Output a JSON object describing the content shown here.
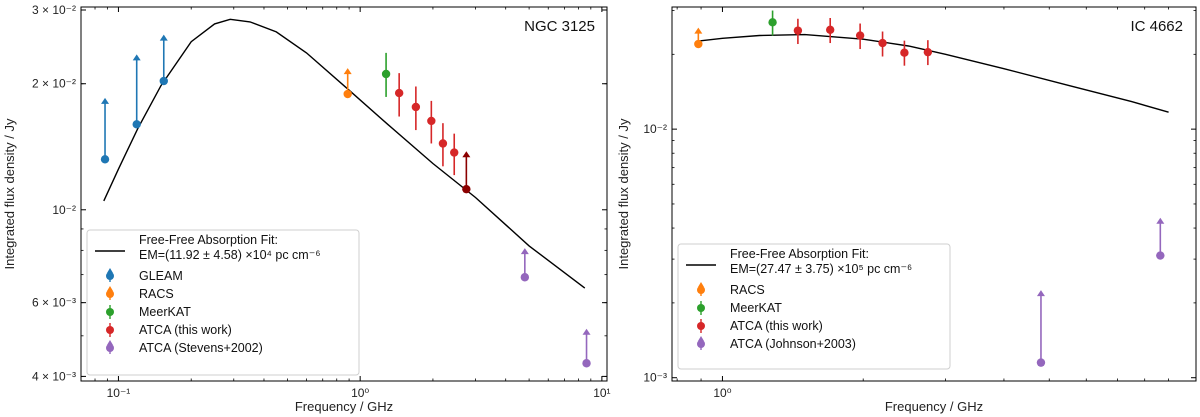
{
  "chart_data": [
    {
      "type": "scatter",
      "title": "NGC 3125",
      "xlabel": "Frequency / GHz",
      "ylabel": "Integrated flux density / Jy",
      "xscale": "log",
      "yscale": "log",
      "xlim": [
        0.07,
        10.5
      ],
      "ylim": [
        0.0039,
        0.0305
      ],
      "x_ticks": [
        {
          "value": 0.1,
          "label": "10⁻¹"
        },
        {
          "value": 1,
          "label": "10⁰"
        },
        {
          "value": 10,
          "label": "10¹"
        }
      ],
      "y_ticks": [
        {
          "value": 0.004,
          "label": "4 × 10⁻³"
        },
        {
          "value": 0.006,
          "label": "6 × 10⁻³"
        },
        {
          "value": 0.01,
          "label": "10⁻²"
        },
        {
          "value": 0.02,
          "label": "2 × 10⁻²"
        },
        {
          "value": 0.03,
          "label": "3 × 10⁻²"
        }
      ],
      "legend_position": "lower-left",
      "fit": {
        "name": "Free-Free Absorption Fit:",
        "annotation": "EM=(11.92 ± 4.58) ×10⁴ pc cm⁻⁶",
        "color": "#000000",
        "x": [
          0.087,
          0.1,
          0.12,
          0.15,
          0.2,
          0.25,
          0.29,
          0.35,
          0.45,
          0.6,
          0.9,
          1.3,
          2.0,
          3.0,
          5.0,
          8.5
        ],
        "y": [
          0.0105,
          0.0125,
          0.0156,
          0.0198,
          0.0252,
          0.0278,
          0.0285,
          0.0281,
          0.0266,
          0.0237,
          0.0193,
          0.016,
          0.0129,
          0.0107,
          0.0082,
          0.0065
        ]
      },
      "series": [
        {
          "name": "GLEAM",
          "color": "#1f77b4",
          "points": [
            {
              "x": 0.088,
              "y": 0.0132,
              "limit_to": 0.0185
            },
            {
              "x": 0.119,
              "y": 0.016,
              "limit_to": 0.0235
            },
            {
              "x": 0.154,
              "y": 0.0203,
              "limit_to": 0.0262
            }
          ]
        },
        {
          "name": "RACS",
          "color": "#ff7f0e",
          "points": [
            {
              "x": 0.888,
              "y": 0.0189,
              "limit_to": 0.0218
            }
          ]
        },
        {
          "name": "MeerKAT",
          "color": "#2ca02c",
          "points": [
            {
              "x": 1.28,
              "y": 0.0211,
              "err_lo": 0.0186,
              "err_hi": 0.0237
            }
          ]
        },
        {
          "name": "ATCA (this work)",
          "color": "#d62728",
          "points": [
            {
              "x": 1.45,
              "y": 0.019,
              "err_lo": 0.0167,
              "err_hi": 0.0212
            },
            {
              "x": 1.7,
              "y": 0.0176,
              "err_lo": 0.0155,
              "err_hi": 0.0197
            },
            {
              "x": 1.97,
              "y": 0.0163,
              "err_lo": 0.0144,
              "err_hi": 0.0182
            },
            {
              "x": 2.2,
              "y": 0.0144,
              "err_lo": 0.0127,
              "err_hi": 0.0161
            },
            {
              "x": 2.45,
              "y": 0.0137,
              "err_lo": 0.0121,
              "err_hi": 0.0152
            },
            {
              "x": 2.75,
              "y": 0.0112,
              "limit_to": 0.0138,
              "color": "#8b0000"
            }
          ]
        },
        {
          "name": "ATCA (Stevens+2002)",
          "color": "#9467bd",
          "points": [
            {
              "x": 4.8,
              "y": 0.0069,
              "limit_to": 0.0081
            },
            {
              "x": 8.64,
              "y": 0.0043,
              "limit_to": 0.0052
            }
          ]
        }
      ]
    },
    {
      "type": "scatter",
      "title": "IC 4662",
      "xlabel": "Frequency / GHz",
      "ylabel": "Integrated flux density / Jy",
      "xscale": "log",
      "yscale": "log",
      "xlim": [
        0.78,
        10.3
      ],
      "ylim": [
        0.00097,
        0.031
      ],
      "x_ticks": [
        {
          "value": 1,
          "label": "10⁰"
        }
      ],
      "y_ticks": [
        {
          "value": 0.001,
          "label": "10⁻³"
        },
        {
          "value": 0.01,
          "label": "10⁻²"
        }
      ],
      "legend_position": "lower-left",
      "fit": {
        "name": "Free-Free Absorption Fit:",
        "annotation": "EM=(27.47 ± 3.75) ×10⁵ pc cm⁻⁶",
        "color": "#000000",
        "x": [
          0.888,
          1.0,
          1.2,
          1.5,
          2.0,
          2.5,
          3.0,
          4.0,
          5.5,
          7.5,
          9.0
        ],
        "y": [
          0.0226,
          0.0232,
          0.0238,
          0.024,
          0.023,
          0.0216,
          0.02,
          0.0175,
          0.015,
          0.0129,
          0.0117
        ]
      },
      "series": [
        {
          "name": "RACS",
          "color": "#ff7f0e",
          "points": [
            {
              "x": 0.888,
              "y": 0.022,
              "limit_to": 0.0256
            }
          ]
        },
        {
          "name": "MeerKAT",
          "color": "#2ca02c",
          "points": [
            {
              "x": 1.28,
              "y": 0.0269,
              "err_lo": 0.0238,
              "err_hi": 0.03
            }
          ]
        },
        {
          "name": "ATCA (this work)",
          "color": "#d62728",
          "points": [
            {
              "x": 1.45,
              "y": 0.0249,
              "err_lo": 0.022,
              "err_hi": 0.0278
            },
            {
              "x": 1.7,
              "y": 0.0251,
              "err_lo": 0.0222,
              "err_hi": 0.028
            },
            {
              "x": 1.97,
              "y": 0.0238,
              "err_lo": 0.021,
              "err_hi": 0.0266
            },
            {
              "x": 2.2,
              "y": 0.0222,
              "err_lo": 0.0196,
              "err_hi": 0.0247
            },
            {
              "x": 2.45,
              "y": 0.0203,
              "err_lo": 0.018,
              "err_hi": 0.0227
            },
            {
              "x": 2.75,
              "y": 0.0204,
              "err_lo": 0.0181,
              "err_hi": 0.0228
            }
          ]
        },
        {
          "name": "ATCA (Johnson+2003)",
          "color": "#9467bd",
          "points": [
            {
              "x": 4.8,
              "y": 0.00115,
              "limit_to": 0.00225
            },
            {
              "x": 8.64,
              "y": 0.0031,
              "limit_to": 0.0044
            }
          ]
        }
      ]
    }
  ]
}
